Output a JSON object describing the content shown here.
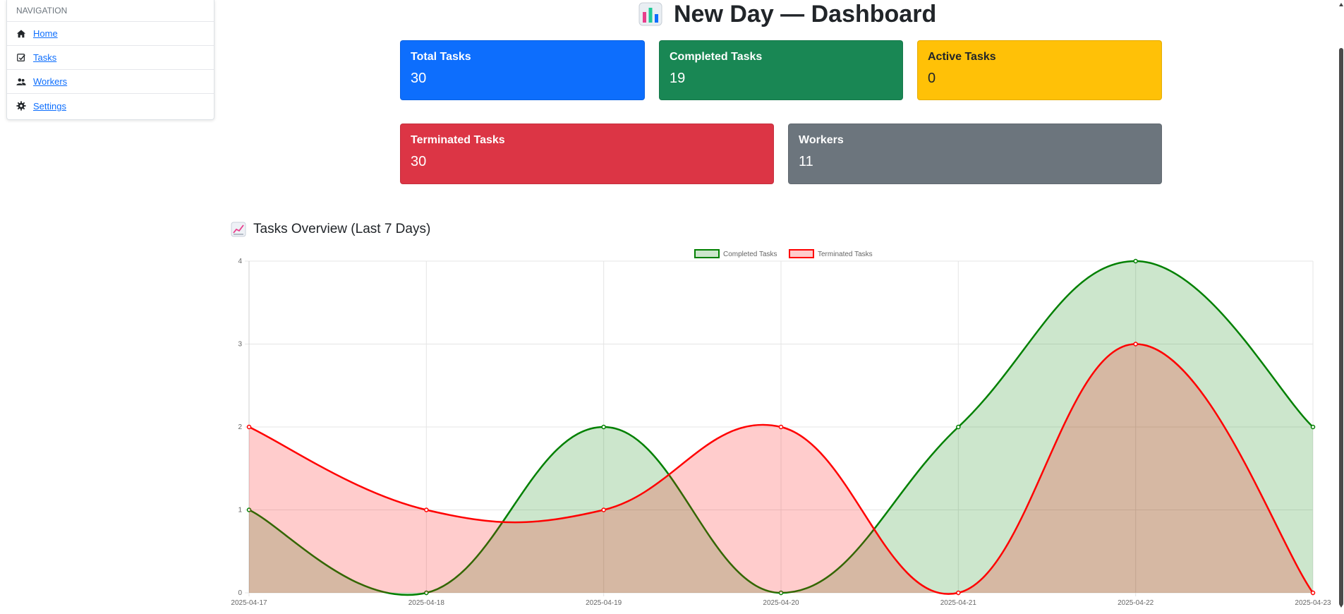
{
  "nav": {
    "heading": "NAVIGATION",
    "items": [
      {
        "label": "Home",
        "icon": "home-icon"
      },
      {
        "label": "Tasks",
        "icon": "checkbox-icon"
      },
      {
        "label": "Workers",
        "icon": "users-icon"
      },
      {
        "label": "Settings",
        "icon": "gear-icon"
      }
    ]
  },
  "page_title": "New Day — Dashboard",
  "cards": [
    {
      "title": "Total Tasks",
      "value": "30",
      "color": "#0d6efd"
    },
    {
      "title": "Completed Tasks",
      "value": "19",
      "color": "#198754"
    },
    {
      "title": "Active Tasks",
      "value": "0",
      "color": "#ffc107"
    },
    {
      "title": "Terminated Tasks",
      "value": "30",
      "color": "#dc3545"
    },
    {
      "title": "Workers",
      "value": "11",
      "color": "#6c757d"
    }
  ],
  "chart_section": {
    "heading": "Tasks Overview (Last 7 Days)"
  },
  "chart_data": {
    "type": "area",
    "categories": [
      "2025-04-17",
      "2025-04-18",
      "2025-04-19",
      "2025-04-20",
      "2025-04-21",
      "2025-04-22",
      "2025-04-23"
    ],
    "series": [
      {
        "name": "Completed Tasks",
        "values": [
          1,
          0,
          2,
          0,
          2,
          4,
          2
        ],
        "color": "#008000",
        "fill": "rgba(0,128,0,0.2)"
      },
      {
        "name": "Terminated Tasks",
        "values": [
          2,
          1,
          1,
          2,
          0,
          3,
          0
        ],
        "color": "#ff0000",
        "fill": "rgba(255,0,0,0.2)"
      }
    ],
    "ylim": [
      0,
      4
    ],
    "yticks": [
      "0",
      "1",
      "2",
      "3",
      "4"
    ],
    "legend_position": "top-center",
    "grid": true
  }
}
